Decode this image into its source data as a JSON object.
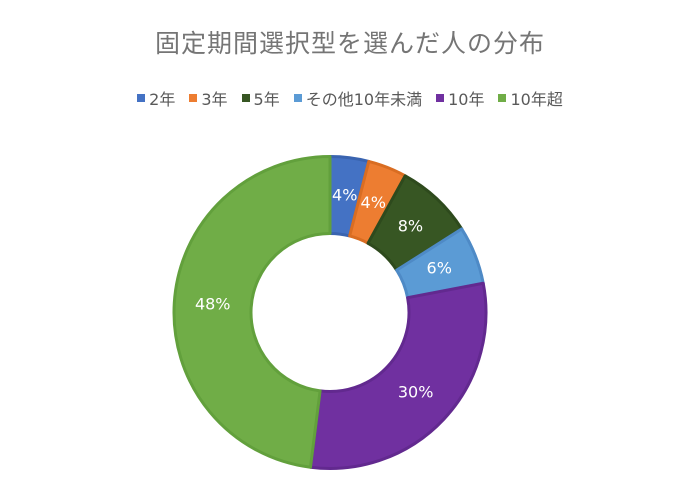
{
  "chart_data": {
    "type": "pie",
    "subtype": "doughnut",
    "title": "固定期間選択型を選んだ人の分布",
    "categories": [
      "2年",
      "3年",
      "5年",
      "その他10年未満",
      "10年",
      "10年超"
    ],
    "values": [
      4,
      4,
      8,
      6,
      30,
      48
    ],
    "unit": "%",
    "data_labels": [
      "4%",
      "4%",
      "8%",
      "6%",
      "30%",
      "48%"
    ],
    "colors": [
      "#4472C4",
      "#ED7D31",
      "#375623",
      "#5B9BD5",
      "#7030A0",
      "#70AD47"
    ],
    "border_colors": [
      "#3A64B0",
      "#D96D22",
      "#2E4A1D",
      "#4E8AC6",
      "#62298F",
      "#62A03C"
    ],
    "legend_position": "top",
    "start_angle_deg": 0,
    "direction": "clockwise",
    "hole_ratio": 0.5
  },
  "title": "固定期間選択型を選んだ人の分布",
  "legend": [
    {
      "label": "2年",
      "color": "#4472C4"
    },
    {
      "label": "3年",
      "color": "#ED7D31"
    },
    {
      "label": "5年",
      "color": "#375623"
    },
    {
      "label": "その他10年未満",
      "color": "#5B9BD5"
    },
    {
      "label": "10年",
      "color": "#7030A0"
    },
    {
      "label": "10年超",
      "color": "#70AD47"
    }
  ]
}
